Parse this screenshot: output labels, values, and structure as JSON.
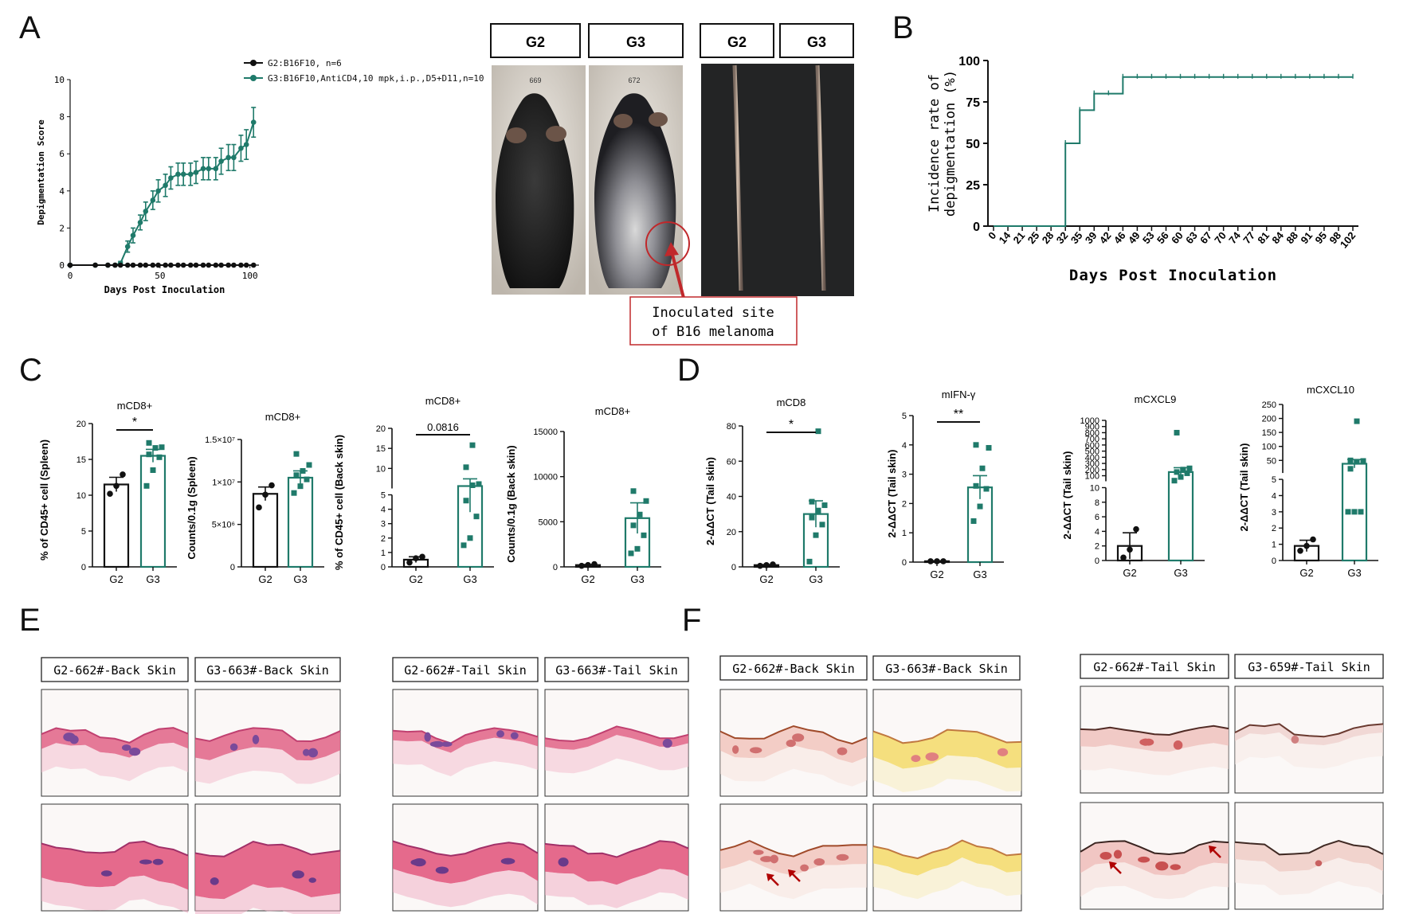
{
  "panel_labels": {
    "a": "A",
    "b": "B",
    "c": "C",
    "d": "D",
    "e": "E",
    "f": "F"
  },
  "colors": {
    "g2": "#111111",
    "g3": "#1f7a6a",
    "annot_red": "#c0282b",
    "he_pink": "#e07090",
    "sirius_red": "#b04a3a"
  },
  "panel_a": {
    "legend_g2": "G2:B16F10, n=6",
    "legend_g3": "G3:B16F10,AntiCD4,10 mpk,i.p.,D5+D11,n=10",
    "photo_labels": [
      "G2",
      "G3",
      "G2",
      "G3"
    ],
    "mouse_tags": [
      "669",
      "672"
    ],
    "callout_line1": "Inoculated site",
    "callout_line2": "of B16 melanoma"
  },
  "panel_e": {
    "labels": [
      "G2-662#-Back Skin",
      "G3-663#-Back Skin",
      "G2-662#-Tail Skin",
      "G3-663#-Tail Skin"
    ]
  },
  "panel_f": {
    "labels": [
      "G2-662#-Back Skin",
      "G3-663#-Back Skin",
      "G2-662#-Tail Skin",
      "G3-659#-Tail Skin"
    ]
  },
  "chart_data": [
    {
      "id": "A_score",
      "type": "line",
      "ylabel": "Depigmentation Score",
      "xlabel": "Days Post Inoculation",
      "xlim": [
        0,
        105
      ],
      "ylim": [
        0,
        10
      ],
      "xticks": [
        "0",
        "50",
        "100"
      ],
      "yticks": [
        "0",
        "2",
        "4",
        "6",
        "8",
        "10"
      ],
      "series": [
        {
          "name": "G2:B16F10, n=6",
          "x": [
            0,
            14,
            21,
            25,
            28,
            32,
            35,
            39,
            42,
            46,
            49,
            53,
            56,
            60,
            63,
            67,
            70,
            74,
            77,
            81,
            84,
            88,
            91,
            95,
            98,
            102
          ],
          "y": [
            0,
            0,
            0,
            0,
            0,
            0,
            0,
            0,
            0,
            0,
            0,
            0,
            0,
            0,
            0,
            0,
            0,
            0,
            0,
            0,
            0,
            0,
            0,
            0,
            0,
            0
          ]
        },
        {
          "name": "G3:B16F10,AntiCD4,10 mpk,i.p.,D5+D11,n=10",
          "x": [
            0,
            14,
            21,
            25,
            28,
            32,
            35,
            39,
            42,
            46,
            49,
            53,
            56,
            60,
            63,
            67,
            70,
            74,
            77,
            81,
            84,
            88,
            91,
            95,
            98,
            102
          ],
          "y": [
            0,
            0,
            0,
            0,
            0.1,
            1.0,
            1.6,
            2.3,
            2.9,
            3.5,
            4.0,
            4.3,
            4.7,
            4.9,
            4.9,
            4.9,
            5.0,
            5.2,
            5.2,
            5.2,
            5.6,
            5.8,
            5.8,
            6.3,
            6.5,
            7.7
          ],
          "err": [
            0,
            0,
            0,
            0,
            0.1,
            0.3,
            0.4,
            0.4,
            0.5,
            0.5,
            0.6,
            0.6,
            0.6,
            0.6,
            0.6,
            0.6,
            0.6,
            0.6,
            0.6,
            0.6,
            0.7,
            0.7,
            0.7,
            0.7,
            0.8,
            0.8
          ]
        }
      ]
    },
    {
      "id": "B_incidence",
      "type": "line",
      "ylabel_line1": "Incidence rate of",
      "ylabel_line2": "depigmentation (%)",
      "xlabel": "Days Post Inoculation",
      "ylim": [
        0,
        100
      ],
      "yticks": [
        "0",
        "25",
        "50",
        "75",
        "100"
      ],
      "categories": [
        "0",
        "14",
        "21",
        "25",
        "28",
        "32",
        "35",
        "39",
        "42",
        "46",
        "49",
        "53",
        "56",
        "60",
        "63",
        "67",
        "70",
        "74",
        "77",
        "81",
        "84",
        "88",
        "91",
        "95",
        "98",
        "102"
      ],
      "values": [
        0,
        0,
        0,
        0,
        0,
        50,
        70,
        80,
        80,
        90,
        90,
        90,
        90,
        90,
        90,
        90,
        90,
        90,
        90,
        90,
        90,
        90,
        90,
        90,
        90,
        90
      ]
    },
    {
      "id": "C1",
      "type": "bar",
      "title": "mCD8+",
      "ylabel": "% of CD45+ cell (Spleen)",
      "categories": [
        "G2",
        "G3"
      ],
      "means": [
        11.5,
        15.5
      ],
      "sem": [
        1.0,
        0.9
      ],
      "points": [
        [
          10.2,
          11.3,
          12.9
        ],
        [
          11.3,
          13.5,
          15.3,
          15.7,
          16.6,
          16.7,
          17.3
        ]
      ],
      "ylim": [
        0,
        20
      ],
      "yticks": [
        "0",
        "5",
        "10",
        "15",
        "20"
      ],
      "sig": "*"
    },
    {
      "id": "C2",
      "type": "bar",
      "title": "mCD8+",
      "ylabel": "Counts/0.1g (Spleen)",
      "categories": [
        "G2",
        "G3"
      ],
      "means": [
        8.6,
        10.5
      ],
      "sem": [
        0.8,
        0.8
      ],
      "points": [
        [
          7.0,
          8.5,
          9.6
        ],
        [
          8.7,
          9.5,
          10.3,
          10.8,
          11.3,
          12.0,
          13.3
        ]
      ],
      "ylim": [
        0,
        15
      ],
      "yticks": [
        "0",
        "5×10⁶",
        "1×10⁷",
        "1.5×10⁷"
      ],
      "ytickvals": [
        0,
        5,
        10,
        15
      ],
      "sig": ""
    },
    {
      "id": "C3",
      "type": "bar",
      "title": "mCD8+",
      "ylabel": "% of CD45+ cell (Back skin)",
      "categories": [
        "G2",
        "G3"
      ],
      "means": [
        0.5,
        5.6
      ],
      "sem": [
        0.2,
        1.8
      ],
      "points": [
        [
          0.3,
          0.6,
          0.7
        ],
        [
          1.5,
          2.0,
          3.5,
          4.6,
          5.8,
          6.1,
          10.3,
          15.8
        ]
      ],
      "ylim": [
        0,
        20
      ],
      "broken": {
        "low": [
          0,
          5
        ],
        "high": [
          5,
          20
        ]
      },
      "yticks": [
        "0",
        "1",
        "2",
        "3",
        "4",
        "5",
        "10",
        "15",
        "20"
      ],
      "sig": "0.0816"
    },
    {
      "id": "C4",
      "type": "bar",
      "title": "mCD8+",
      "ylabel": "Counts/0.1g (Back skin)",
      "categories": [
        "G2",
        "G3"
      ],
      "means": [
        200,
        5400
      ],
      "sem": [
        60,
        1700
      ],
      "points": [
        [
          120,
          200,
          300
        ],
        [
          1500,
          2000,
          3500,
          4600,
          5800,
          7300,
          8400
        ]
      ],
      "ylim": [
        0,
        15000
      ],
      "yticks": [
        "0",
        "5000",
        "10000",
        "15000"
      ],
      "sig": ""
    },
    {
      "id": "D1",
      "type": "bar",
      "title": "mCD8",
      "ylabel": "2-ΔΔCT (Tail skin)",
      "categories": [
        "G2",
        "G3"
      ],
      "means": [
        1,
        30
      ],
      "sem": [
        0.3,
        7.5
      ],
      "points": [
        [
          0.6,
          1.0,
          1.4
        ],
        [
          3,
          18,
          24,
          28,
          32,
          35,
          37,
          77
        ]
      ],
      "ylim": [
        0,
        80
      ],
      "yticks": [
        "0",
        "20",
        "40",
        "60",
        "80"
      ],
      "sig": "*"
    },
    {
      "id": "D2",
      "type": "bar",
      "title": "mIFN-γ",
      "ylabel": "2-ΔΔCT (Tail skin)",
      "categories": [
        "G2",
        "G3"
      ],
      "means": [
        0.03,
        2.55
      ],
      "sem": [
        0.01,
        0.4
      ],
      "points": [
        [
          0.03,
          0.03,
          0.03
        ],
        [
          1.4,
          1.9,
          2.5,
          2.6,
          3.2,
          3.9,
          4.0
        ]
      ],
      "ylim": [
        0,
        5
      ],
      "yticks": [
        "0",
        "1",
        "2",
        "3",
        "4",
        "5"
      ],
      "sig": "**"
    },
    {
      "id": "D3",
      "type": "bar",
      "title": "mCXCL9",
      "ylabel": "2-ΔΔCT (Tail skin)",
      "categories": [
        "G2",
        "G3"
      ],
      "means": [
        2,
        160
      ],
      "sem": [
        1.8,
        70
      ],
      "points": [
        [
          0.4,
          1.5,
          4.3
        ],
        [
          20,
          80,
          140,
          160,
          200,
          220,
          800
        ]
      ],
      "broken": {
        "low": [
          0,
          10
        ],
        "high": [
          10,
          1000
        ]
      },
      "yticks_low": [
        "0",
        "2",
        "4",
        "6",
        "8",
        "10"
      ],
      "yticks_high": [
        "100",
        "200",
        "300",
        "400",
        "500",
        "600",
        "700",
        "800",
        "900",
        "1000"
      ],
      "sig": ""
    },
    {
      "id": "D4",
      "type": "bar",
      "title": "mCXCL10",
      "ylabel": "2-ΔΔCT (Tail skin)",
      "categories": [
        "G2",
        "G3"
      ],
      "means": [
        0.9,
        38
      ],
      "sem": [
        0.35,
        15
      ],
      "points": [
        [
          0.6,
          0.9,
          1.3
        ],
        [
          3,
          3,
          3,
          20,
          45,
          48,
          50,
          190
        ]
      ],
      "broken": {
        "low": [
          0,
          5
        ],
        "high": [
          5,
          250
        ]
      },
      "yticks_low": [
        "0",
        "1",
        "2",
        "3",
        "4",
        "5"
      ],
      "yticks_high": [
        "50",
        "100",
        "150",
        "200",
        "250"
      ],
      "sig": ""
    }
  ]
}
